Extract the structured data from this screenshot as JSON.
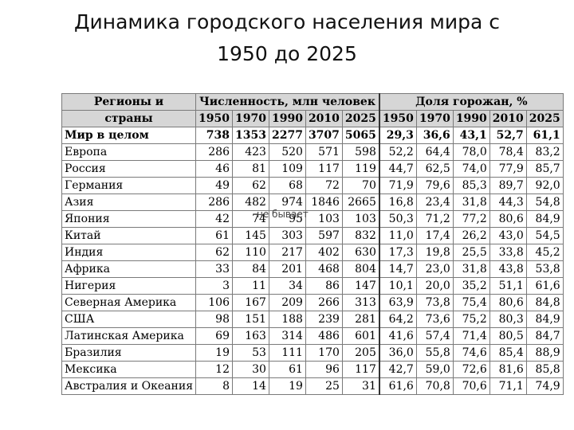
{
  "title_line1": "Динамика городского населения мира с",
  "title_line2": "1950 до 2025",
  "table": {
    "header_region_line1": "Регионы и",
    "header_region_line2": "страны",
    "header_population": "Численность, млн человек",
    "header_share": "Доля горожан, %",
    "years": [
      "1950",
      "1970",
      "1990",
      "2010",
      "2025"
    ],
    "rows": [
      {
        "name": "Мир в целом",
        "pop": [
          "738",
          "1353",
          "2277",
          "3707",
          "5065"
        ],
        "share": [
          "29,3",
          "36,6",
          "43,1",
          "52,7",
          "61,1"
        ]
      },
      {
        "name": "Европа",
        "pop": [
          "286",
          "423",
          "520",
          "571",
          "598"
        ],
        "share": [
          "52,2",
          "64,4",
          "78,0",
          "78,4",
          "83,2"
        ]
      },
      {
        "name": "Россия",
        "pop": [
          "46",
          "81",
          "109",
          "117",
          "119"
        ],
        "share": [
          "44,7",
          "62,5",
          "74,0",
          "77,9",
          "85,7"
        ]
      },
      {
        "name": "Германия",
        "pop": [
          "49",
          "62",
          "68",
          "72",
          "70"
        ],
        "share": [
          "71,9",
          "79,6",
          "85,3",
          "89,7",
          "92,0"
        ]
      },
      {
        "name": "Азия",
        "pop": [
          "286",
          "482",
          "974",
          "1846",
          "2665"
        ],
        "share": [
          "16,8",
          "23,4",
          "31,8",
          "44,3",
          "54,8"
        ]
      },
      {
        "name": "Япония",
        "pop": [
          "42",
          "74",
          "95",
          "103",
          "103"
        ],
        "share": [
          "50,3",
          "71,2",
          "77,2",
          "80,6",
          "84,9"
        ]
      },
      {
        "name": "Китай",
        "pop": [
          "61",
          "145",
          "303",
          "597",
          "832"
        ],
        "share": [
          "11,0",
          "17,4",
          "26,2",
          "43,0",
          "54,5"
        ]
      },
      {
        "name": "Индия",
        "pop": [
          "62",
          "110",
          "217",
          "402",
          "630"
        ],
        "share": [
          "17,3",
          "19,8",
          "25,5",
          "33,8",
          "45,2"
        ]
      },
      {
        "name": "Африка",
        "pop": [
          "33",
          "84",
          "201",
          "468",
          "804"
        ],
        "share": [
          "14,7",
          "23,0",
          "31,8",
          "43,8",
          "53,8"
        ]
      },
      {
        "name": "Нигерия",
        "pop": [
          "3",
          "11",
          "34",
          "86",
          "147"
        ],
        "share": [
          "10,1",
          "20,0",
          "35,2",
          "51,1",
          "61,6"
        ]
      },
      {
        "name": "Северная Америка",
        "pop": [
          "106",
          "167",
          "209",
          "266",
          "313"
        ],
        "share": [
          "63,9",
          "73,8",
          "75,4",
          "80,6",
          "84,8"
        ]
      },
      {
        "name": "США",
        "pop": [
          "98",
          "151",
          "188",
          "239",
          "281"
        ],
        "share": [
          "64,2",
          "73,6",
          "75,2",
          "80,3",
          "84,9"
        ]
      },
      {
        "name": "Латинская Америка",
        "pop": [
          "69",
          "163",
          "314",
          "486",
          "601"
        ],
        "share": [
          "41,6",
          "57,4",
          "71,4",
          "80,5",
          "84,7"
        ]
      },
      {
        "name": "Бразилия",
        "pop": [
          "19",
          "53",
          "111",
          "170",
          "205"
        ],
        "share": [
          "36,0",
          "55,8",
          "74,6",
          "85,4",
          "88,9"
        ]
      },
      {
        "name": "Мексика",
        "pop": [
          "12",
          "30",
          "61",
          "96",
          "117"
        ],
        "share": [
          "42,7",
          "59,0",
          "72,6",
          "81,6",
          "85,8"
        ]
      },
      {
        "name": "Австралия и Океания",
        "pop": [
          "8",
          "14",
          "19",
          "25",
          "31"
        ],
        "share": [
          "61,6",
          "70,8",
          "70,6",
          "71,1",
          "74,9"
        ]
      }
    ]
  },
  "overlay_text": "не бывает"
}
